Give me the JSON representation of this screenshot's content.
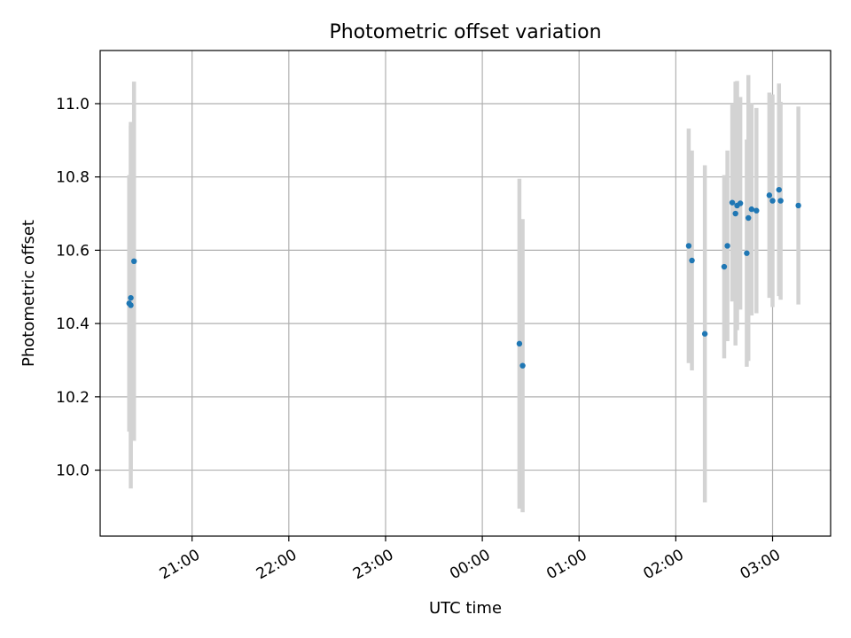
{
  "chart_data": {
    "type": "scatter",
    "title": "Photometric offset variation",
    "xlabel": "UTC time",
    "ylabel": "Photometric offset",
    "x_axis": {
      "scale": "time",
      "xlim": [
        "20:03",
        "03:36"
      ]
    },
    "y_axis": {
      "ylim": [
        9.82,
        11.145
      ]
    },
    "x_ticks": [
      "21:00",
      "22:00",
      "23:00",
      "00:00",
      "01:00",
      "02:00",
      "03:00"
    ],
    "y_ticks": [
      "10.0",
      "10.2",
      "10.4",
      "10.6",
      "10.8",
      "11.0"
    ],
    "grid": true,
    "marker_color": "#1f77b4",
    "errorbar_color": "#d3d3d3",
    "points": [
      {
        "time": "20:21",
        "y": 10.455,
        "err": 0.35
      },
      {
        "time": "20:22",
        "y": 10.45,
        "err": 0.5
      },
      {
        "time": "20:22",
        "y": 10.47,
        "err": 0.47
      },
      {
        "time": "20:24",
        "y": 10.57,
        "err": 0.49
      },
      {
        "time": "00:23",
        "y": 10.345,
        "err": 0.45
      },
      {
        "time": "00:25",
        "y": 10.285,
        "err": 0.4
      },
      {
        "time": "02:08",
        "y": 10.612,
        "err": 0.32
      },
      {
        "time": "02:10",
        "y": 10.572,
        "err": 0.3
      },
      {
        "time": "02:18",
        "y": 10.372,
        "err": 0.46
      },
      {
        "time": "02:30",
        "y": 10.555,
        "err": 0.25
      },
      {
        "time": "02:32",
        "y": 10.612,
        "err": 0.26
      },
      {
        "time": "02:35",
        "y": 10.73,
        "err": 0.27
      },
      {
        "time": "02:37",
        "y": 10.7,
        "err": 0.36
      },
      {
        "time": "02:38",
        "y": 10.722,
        "err": 0.34
      },
      {
        "time": "02:40",
        "y": 10.728,
        "err": 0.29
      },
      {
        "time": "02:44",
        "y": 10.592,
        "err": 0.31
      },
      {
        "time": "02:45",
        "y": 10.688,
        "err": 0.39
      },
      {
        "time": "02:47",
        "y": 10.712,
        "err": 0.29
      },
      {
        "time": "02:50",
        "y": 10.708,
        "err": 0.28
      },
      {
        "time": "02:58",
        "y": 10.75,
        "err": 0.28
      },
      {
        "time": "03:00",
        "y": 10.735,
        "err": 0.29
      },
      {
        "time": "03:04",
        "y": 10.765,
        "err": 0.29
      },
      {
        "time": "03:05",
        "y": 10.735,
        "err": 0.27
      },
      {
        "time": "03:16",
        "y": 10.722,
        "err": 0.27
      }
    ]
  }
}
